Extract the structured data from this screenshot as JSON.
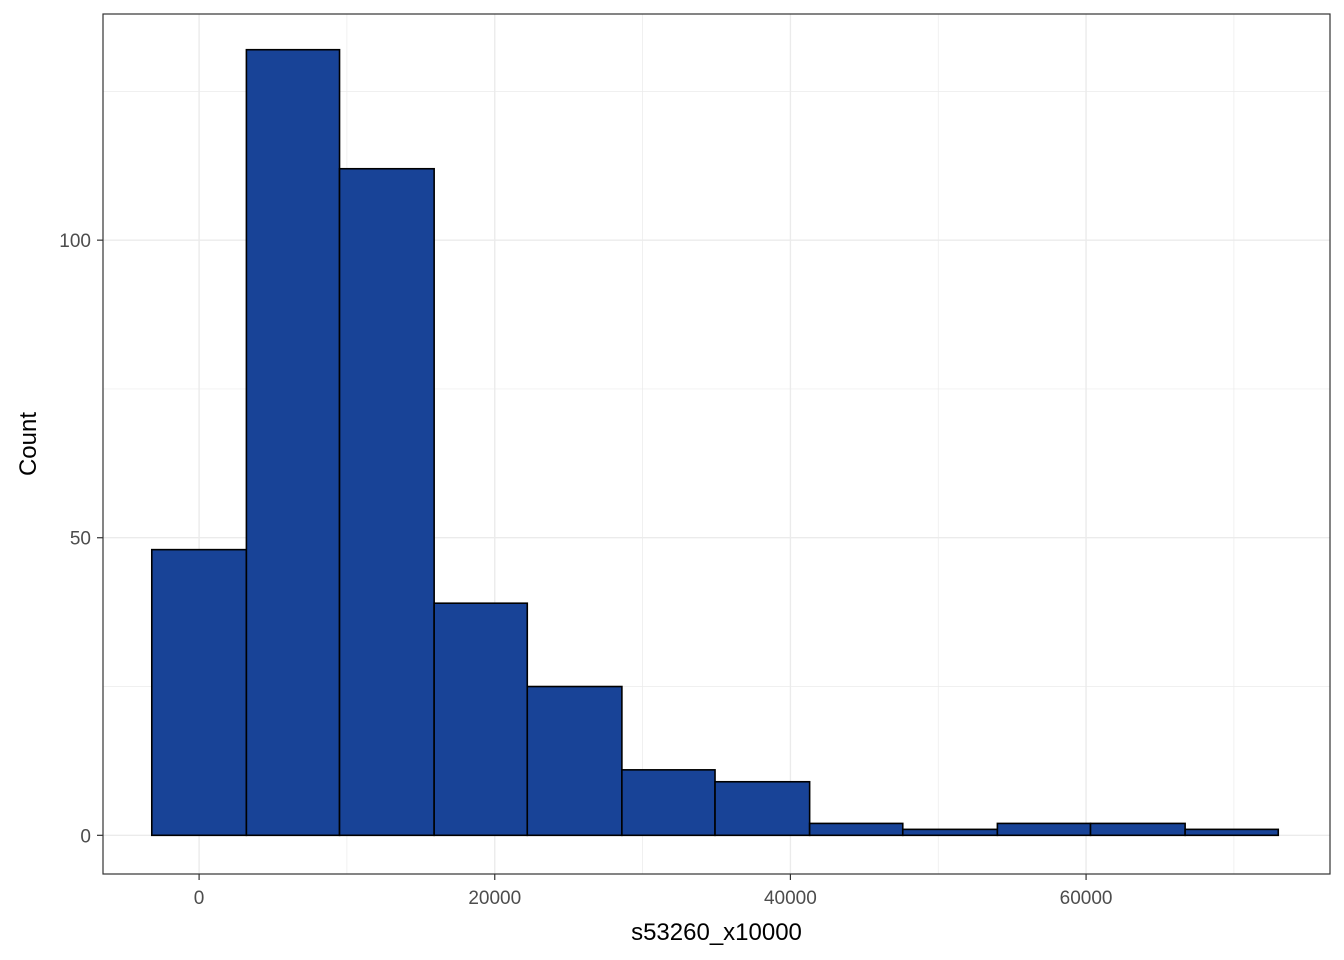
{
  "chart_data": {
    "type": "bar",
    "subtype": "histogram",
    "xlabel": "s53260_x10000",
    "ylabel": "Count",
    "xlim": [
      -6500,
      76500
    ],
    "ylim": [
      -6.5,
      138
    ],
    "x_ticks": [
      0,
      20000,
      40000,
      60000
    ],
    "y_ticks": [
      0,
      50,
      100
    ],
    "x_tick_labels": [
      "0",
      "20000",
      "40000",
      "60000"
    ],
    "y_tick_labels": [
      "0",
      "50",
      "100"
    ],
    "bins": [
      {
        "x0": -3200,
        "x1": 3200,
        "count": 48
      },
      {
        "x0": 3200,
        "x1": 9500,
        "count": 132
      },
      {
        "x0": 9500,
        "x1": 15900,
        "count": 112
      },
      {
        "x0": 15900,
        "x1": 22200,
        "count": 39
      },
      {
        "x0": 22200,
        "x1": 28600,
        "count": 25
      },
      {
        "x0": 28600,
        "x1": 34900,
        "count": 11
      },
      {
        "x0": 34900,
        "x1": 41300,
        "count": 9
      },
      {
        "x0": 41300,
        "x1": 47600,
        "count": 2
      },
      {
        "x0": 47600,
        "x1": 54000,
        "count": 1
      },
      {
        "x0": 54000,
        "x1": 60300,
        "count": 2
      },
      {
        "x0": 60300,
        "x1": 66700,
        "count": 2
      },
      {
        "x0": 66700,
        "x1": 73000,
        "count": 1
      }
    ],
    "grid": true,
    "colors": {
      "bar_fill": "#184397",
      "bar_stroke": "#000000",
      "grid": "#ebebeb",
      "panel_border": "#333333"
    }
  }
}
